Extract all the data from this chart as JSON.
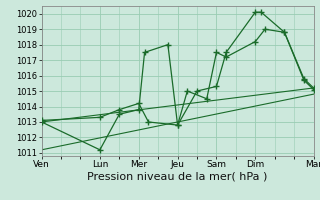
{
  "bg_color": "#cce8dc",
  "grid_color": "#99ccb3",
  "line_color": "#1a6b2a",
  "marker_color": "#1a6b2a",
  "xlabel": "Pression niveau de la mer( hPa )",
  "xlabel_fontsize": 8,
  "ylim": [
    1010.8,
    1020.5
  ],
  "yticks": [
    1011,
    1012,
    1013,
    1014,
    1015,
    1016,
    1017,
    1018,
    1019,
    1020
  ],
  "x_day_labels": [
    "Ven",
    "Lun",
    "Mer",
    "Jeu",
    "Sam",
    "Dim",
    "Mar"
  ],
  "x_day_positions": [
    0,
    3,
    5,
    7,
    9,
    11,
    14
  ],
  "series1_x": [
    0,
    3,
    4,
    5,
    5.3,
    6.5,
    7.0,
    8.0,
    9.0,
    9.5,
    11.0,
    11.3,
    12.5,
    13.5,
    14.0
  ],
  "series1_y": [
    1013.0,
    1011.2,
    1013.5,
    1013.8,
    1017.5,
    1018.0,
    1012.8,
    1015.0,
    1015.3,
    1017.5,
    1020.1,
    1020.1,
    1018.8,
    1015.7,
    1015.1
  ],
  "series2_x": [
    0,
    3,
    4,
    5,
    5.5,
    7.0,
    7.5,
    8.5,
    9.0,
    9.5,
    11.0,
    11.5,
    12.5,
    13.5,
    14.0
  ],
  "series2_y": [
    1013.1,
    1013.3,
    1013.8,
    1014.2,
    1013.0,
    1012.8,
    1015.0,
    1014.5,
    1017.5,
    1017.2,
    1018.2,
    1019.0,
    1018.8,
    1015.8,
    1015.2
  ],
  "trend1_x": [
    0,
    14
  ],
  "trend1_y": [
    1013.0,
    1015.2
  ],
  "trend2_x": [
    0,
    14
  ],
  "trend2_y": [
    1011.2,
    1014.8
  ],
  "xlim": [
    0,
    14
  ],
  "figsize": [
    3.2,
    2.0
  ],
  "dpi": 100
}
